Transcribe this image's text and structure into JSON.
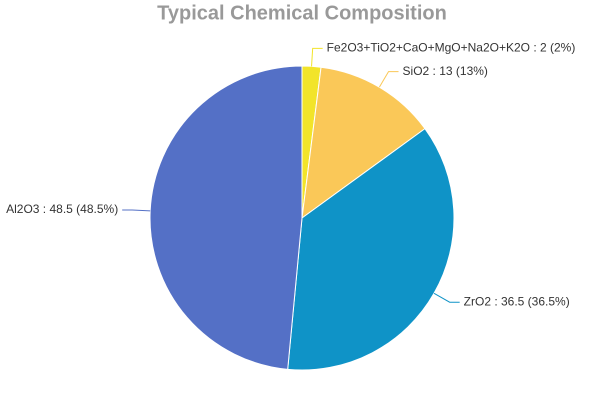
{
  "chart_data": {
    "type": "pie",
    "title": "Typical Chemical Composition",
    "values": [
      2,
      13,
      36.5,
      48.5
    ],
    "value_labels": [
      "Fe2O3+TiO2+CaO+MgO+Na2O+K2O : 2 (2%)",
      "SiO2 : 13 (13%)",
      "ZrO2 : 36.5 (36.5%)",
      "Al2O3 : 48.5 (48.5%)"
    ],
    "colors": [
      "#f2e42a",
      "#fac858",
      "#0f93c7",
      "#5470c6"
    ]
  }
}
